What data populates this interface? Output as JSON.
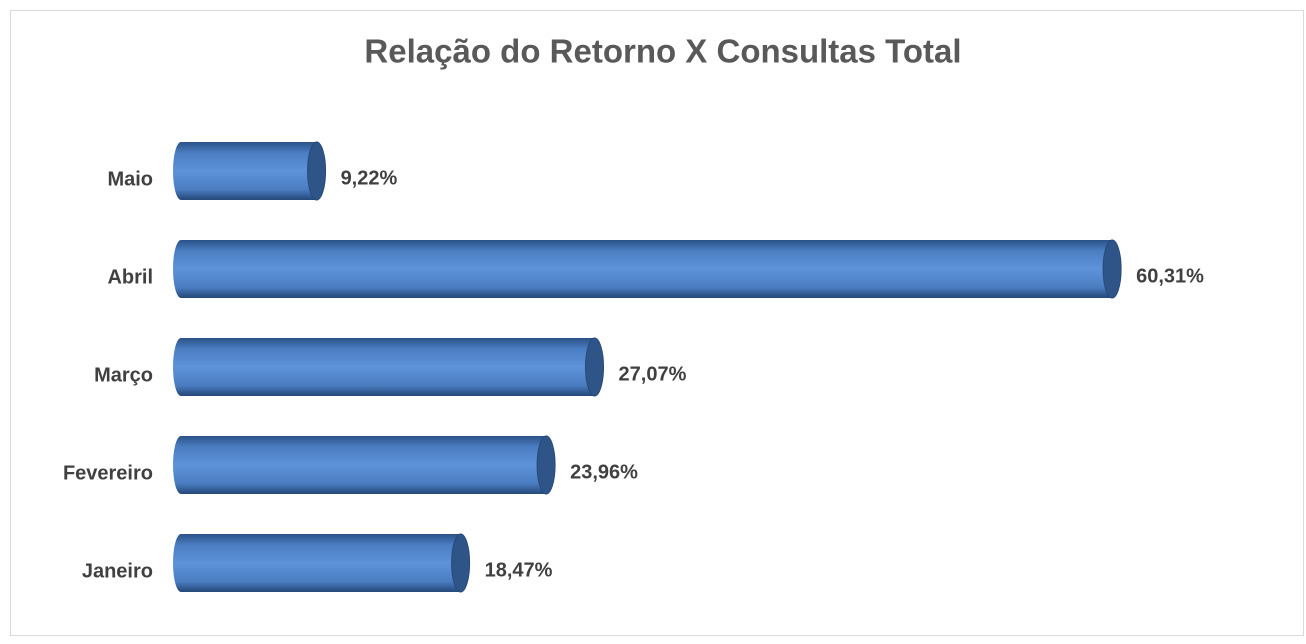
{
  "chart_data": {
    "type": "bar",
    "orientation": "horizontal",
    "title": "Relação do Retorno X Consultas Total",
    "categories": [
      "Janeiro",
      "Fevereiro",
      "Março",
      "Abril",
      "Maio"
    ],
    "values": [
      18.47,
      23.96,
      27.07,
      60.31,
      9.22
    ],
    "value_labels": [
      "18,47%",
      "23,96%",
      "27,07%",
      "60,31%",
      "9,22%"
    ],
    "color": "#4f81bd",
    "xlim": [
      0,
      70
    ]
  }
}
